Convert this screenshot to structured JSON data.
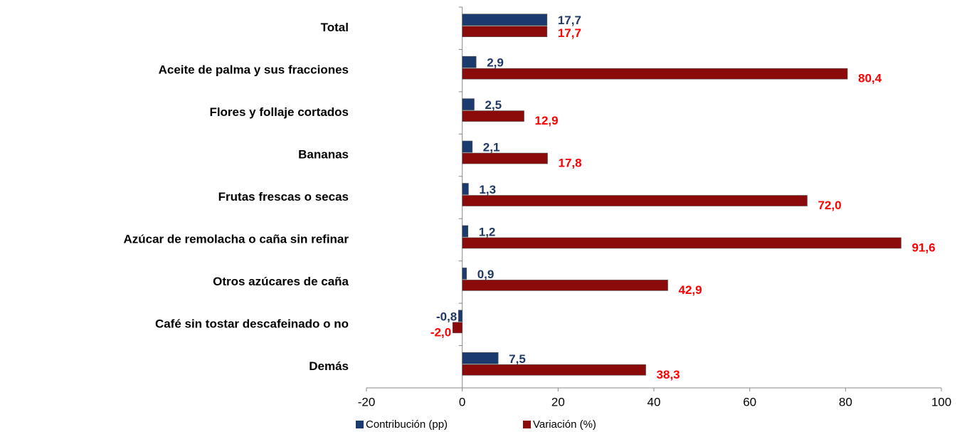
{
  "chart_data": {
    "type": "bar",
    "orientation": "horizontal",
    "categories": [
      "Total",
      "Aceite de palma y sus fracciones",
      "Flores y follaje cortados",
      "Bananas",
      "Frutas frescas o secas",
      "Azúcar de remolacha o caña sin refinar",
      "Otros azúcares de caña",
      "Café sin tostar descafeinado o no",
      "Demás"
    ],
    "series": [
      {
        "name": "Contribución (pp)",
        "color": "#1b3a6e",
        "label_color": "#1f3864",
        "values": [
          17.7,
          2.9,
          2.5,
          2.1,
          1.3,
          1.2,
          0.9,
          -0.8,
          7.5
        ],
        "value_labels": [
          "17,7",
          "2,9",
          "2,5",
          "2,1",
          "1,3",
          "1,2",
          "0,9",
          "-0,8",
          "7,5"
        ]
      },
      {
        "name": "Variación (%)",
        "color": "#8b0a0a",
        "label_color": "#ff0000",
        "values": [
          17.7,
          80.4,
          12.9,
          17.8,
          72.0,
          91.6,
          42.9,
          -2.0,
          38.3
        ],
        "value_labels": [
          "17,7",
          "80,4",
          "12,9",
          "17,8",
          "72,0",
          "91,6",
          "42,9",
          "-2,0",
          "38,3"
        ]
      }
    ],
    "xlim": [
      -20,
      100
    ],
    "xticks": [
      -20,
      0,
      20,
      40,
      60,
      80,
      100
    ],
    "grid": false
  }
}
